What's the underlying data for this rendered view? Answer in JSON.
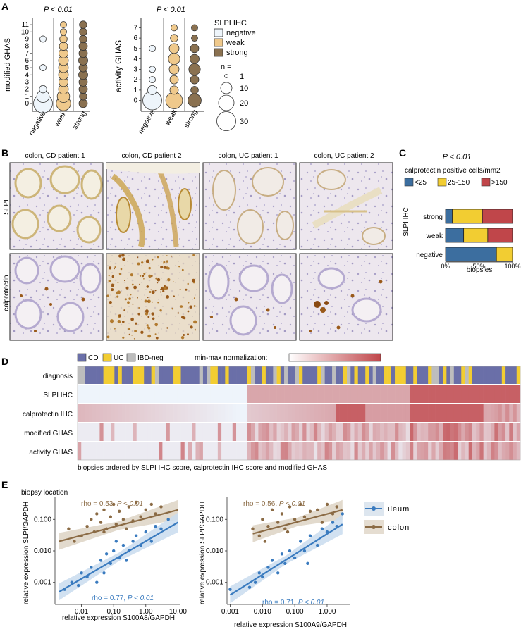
{
  "panels": {
    "A": "A",
    "B": "B",
    "C": "C",
    "D": "D",
    "E": "E"
  },
  "panelA": {
    "left": {
      "pvalue": "P < 0.01",
      "ylabel": "modified GHAS",
      "yticks": [
        "0",
        "1",
        "2",
        "3",
        "4",
        "5",
        "6",
        "7",
        "8",
        "9",
        "10",
        "11"
      ],
      "categories": [
        "negative",
        "weak",
        "strong"
      ]
    },
    "right": {
      "pvalue": "P < 0.01",
      "ylabel": "activity GHAS",
      "yticks": [
        "0",
        "1",
        "2",
        "3",
        "4",
        "5",
        "6",
        "7"
      ],
      "categories": [
        "negative",
        "weak",
        "strong"
      ]
    },
    "legend": {
      "title": "SLPI IHC",
      "items": [
        {
          "label": "negative",
          "color": "#eef5fb"
        },
        {
          "label": "weak",
          "color": "#efc98c"
        },
        {
          "label": "strong",
          "color": "#8a7150"
        }
      ],
      "size_title": "n =",
      "sizes": [
        "1",
        "10",
        "20",
        "30"
      ]
    }
  },
  "panelB": {
    "columns": [
      "colon, CD patient 1",
      "colon, CD patient 2",
      "colon, UC patient 1",
      "colon, UC patient 2"
    ],
    "rows": [
      "SLPI",
      "calprotectin"
    ]
  },
  "panelC": {
    "pvalue": "P < 0.01",
    "legend_title": "calprotectin positive cells/mm2",
    "legend": [
      {
        "label": "<25",
        "color": "#3c6e9f"
      },
      {
        "label": "25-150",
        "color": "#f2cd32"
      },
      {
        "label": ">150",
        "color": "#c0464a"
      }
    ],
    "ylabel": "SLPI IHC",
    "xlabel": "biopsies",
    "xticks": [
      "0%",
      "50%",
      "100%"
    ]
  },
  "panelD": {
    "legend": [
      {
        "label": "CD",
        "color": "#6a6fa8"
      },
      {
        "label": "UC",
        "color": "#f2cd32"
      },
      {
        "label": "IBD-neg",
        "color": "#bdbdbd"
      }
    ],
    "norm_label": "min-max normalization:",
    "rows": [
      "diagnosis",
      "SLPI IHC",
      "calprotectin IHC",
      "modified GHAS",
      "activity GHAS"
    ],
    "caption": "biopsies ordered by SLPI IHC score, calprotectin IHC score and modified GHAS"
  },
  "panelE": {
    "title": "biopsy location",
    "legend": [
      {
        "label": "ileum",
        "color": "#3a7bbf"
      },
      {
        "label": "colon",
        "color": "#8b6b45"
      }
    ],
    "left": {
      "rho_colon": "rho = 0.53, ",
      "rho_ileum": "rho = 0.77, ",
      "p_text": "P < 0.01",
      "ylabel": "relative expression SLPI/GAPDH",
      "xlabel": "relative expression S100A8/GAPDH",
      "yticks": [
        "0.001",
        "0.010",
        "0.100"
      ],
      "xticks": [
        "0.01",
        "0.10",
        "1.00",
        "10.00"
      ]
    },
    "right": {
      "rho_colon": "rho = 0.56, ",
      "rho_ileum": "rho = 0.71, ",
      "p_text": "P < 0.01",
      "ylabel": "relative expression SLPI/GAPDH",
      "xlabel": "relative expression S100A9/GAPDH",
      "yticks": [
        "0.001",
        "0.010",
        "0.100"
      ],
      "xticks": [
        "0.001",
        "0.010",
        "0.100",
        "1.000"
      ]
    }
  },
  "chart_data": [
    {
      "type": "scatter",
      "title": "",
      "xlabel": "",
      "ylabel": "modified GHAS",
      "categories": [
        "negative",
        "weak",
        "strong"
      ],
      "series": [
        {
          "name": "negative",
          "points": [
            {
              "y": 0,
              "n": 30
            },
            {
              "y": 1,
              "n": 10
            },
            {
              "y": 2,
              "n": 2
            },
            {
              "y": 5,
              "n": 1
            },
            {
              "y": 9,
              "n": 1
            }
          ]
        },
        {
          "name": "weak",
          "points": [
            {
              "y": 0,
              "n": 15
            },
            {
              "y": 1,
              "n": 10
            },
            {
              "y": 2,
              "n": 5
            },
            {
              "y": 3,
              "n": 4
            },
            {
              "y": 4,
              "n": 5
            },
            {
              "y": 5,
              "n": 5
            },
            {
              "y": 6,
              "n": 5
            },
            {
              "y": 7,
              "n": 4
            },
            {
              "y": 8,
              "n": 3
            },
            {
              "y": 9,
              "n": 2
            },
            {
              "y": 10,
              "n": 1
            },
            {
              "y": 11,
              "n": 1
            }
          ]
        },
        {
          "name": "strong",
          "points": [
            {
              "y": 0,
              "n": 3
            },
            {
              "y": 1,
              "n": 2
            },
            {
              "y": 2,
              "n": 3
            },
            {
              "y": 3,
              "n": 3
            },
            {
              "y": 4,
              "n": 4
            },
            {
              "y": 5,
              "n": 3
            },
            {
              "y": 6,
              "n": 4
            },
            {
              "y": 7,
              "n": 3
            },
            {
              "y": 8,
              "n": 3
            },
            {
              "y": 9,
              "n": 2
            },
            {
              "y": 10,
              "n": 2
            },
            {
              "y": 11,
              "n": 2
            }
          ]
        }
      ],
      "ylim": [
        -0.5,
        11.5
      ]
    },
    {
      "type": "scatter",
      "title": "",
      "ylabel": "activity GHAS",
      "categories": [
        "negative",
        "weak",
        "strong"
      ],
      "series": [
        {
          "name": "negative",
          "points": [
            {
              "y": 0,
              "n": 30
            },
            {
              "y": 1,
              "n": 4
            },
            {
              "y": 2,
              "n": 1
            },
            {
              "y": 3,
              "n": 1
            },
            {
              "y": 5,
              "n": 1
            }
          ]
        },
        {
          "name": "weak",
          "points": [
            {
              "y": 0,
              "n": 22
            },
            {
              "y": 1,
              "n": 3
            },
            {
              "y": 2,
              "n": 3
            },
            {
              "y": 3,
              "n": 5
            },
            {
              "y": 4,
              "n": 8
            },
            {
              "y": 5,
              "n": 5
            },
            {
              "y": 6,
              "n": 2
            },
            {
              "y": 7,
              "n": 1
            }
          ]
        },
        {
          "name": "strong",
          "points": [
            {
              "y": 0,
              "n": 12
            },
            {
              "y": 1,
              "n": 2
            },
            {
              "y": 2,
              "n": 3
            },
            {
              "y": 3,
              "n": 8
            },
            {
              "y": 4,
              "n": 4
            },
            {
              "y": 5,
              "n": 3
            },
            {
              "y": 6,
              "n": 1
            },
            {
              "y": 7,
              "n": 1
            }
          ]
        }
      ],
      "ylim": [
        -0.5,
        7.5
      ]
    },
    {
      "type": "bar",
      "title": "",
      "categories": [
        "strong",
        "weak",
        "negative"
      ],
      "series": [
        {
          "name": "<25",
          "values": [
            10,
            27,
            76
          ]
        },
        {
          "name": "25-150",
          "values": [
            45,
            36,
            24
          ]
        },
        {
          "name": ">150",
          "values": [
            45,
            37,
            0
          ]
        }
      ],
      "xlabel": "biopsies",
      "ylabel": "SLPI IHC",
      "xlim": [
        0,
        100
      ]
    },
    {
      "type": "heatmap",
      "title": "",
      "rows": [
        "diagnosis",
        "SLPI IHC",
        "calprotectin IHC",
        "modified GHAS",
        "activity GHAS"
      ]
    },
    {
      "type": "scatter",
      "title": "",
      "xlabel": "relative expression S100A8/GAPDH",
      "ylabel": "relative expression SLPI/GAPDH",
      "xscale": "log",
      "yscale": "log",
      "xlim": [
        0.0015,
        12
      ],
      "ylim": [
        0.0002,
        0.5
      ],
      "series": [
        {
          "name": "colon",
          "points": [
            [
              0.01,
              0.03
            ],
            [
              0.015,
              0.06
            ],
            [
              0.02,
              0.1
            ],
            [
              0.025,
              0.04
            ],
            [
              0.03,
              0.15
            ],
            [
              0.04,
              0.08
            ],
            [
              0.05,
              0.2
            ],
            [
              0.06,
              0.05
            ],
            [
              0.08,
              0.12
            ],
            [
              0.1,
              0.3
            ],
            [
              0.12,
              0.07
            ],
            [
              0.15,
              0.18
            ],
            [
              0.2,
              0.1
            ],
            [
              0.3,
              0.25
            ],
            [
              0.4,
              0.09
            ],
            [
              0.5,
              0.35
            ],
            [
              0.7,
              0.12
            ],
            [
              1,
              0.2
            ],
            [
              1.5,
              0.3
            ],
            [
              2,
              0.15
            ],
            [
              3,
              0.25
            ],
            [
              0.006,
              0.02
            ],
            [
              0.004,
              0.05
            ],
            [
              0.05,
              0.04
            ],
            [
              0.25,
              0.05
            ]
          ],
          "fit": [
            [
              0.002,
              0.02
            ],
            [
              10,
              0.2
            ]
          ]
        },
        {
          "name": "ileum",
          "points": [
            [
              0.003,
              0.0006
            ],
            [
              0.005,
              0.001
            ],
            [
              0.008,
              0.0008
            ],
            [
              0.01,
              0.002
            ],
            [
              0.015,
              0.0015
            ],
            [
              0.02,
              0.003
            ],
            [
              0.03,
              0.001
            ],
            [
              0.04,
              0.005
            ],
            [
              0.05,
              0.002
            ],
            [
              0.06,
              0.008
            ],
            [
              0.08,
              0.004
            ],
            [
              0.1,
              0.01
            ],
            [
              0.15,
              0.006
            ],
            [
              0.2,
              0.015
            ],
            [
              0.3,
              0.01
            ],
            [
              0.4,
              0.02
            ],
            [
              0.5,
              0.03
            ],
            [
              0.7,
              0.015
            ],
            [
              1,
              0.04
            ],
            [
              1.5,
              0.02
            ],
            [
              2,
              0.06
            ],
            [
              3,
              0.05
            ],
            [
              5,
              0.1
            ],
            [
              0.12,
              0.02
            ],
            [
              0.25,
              0.005
            ]
          ],
          "fit": [
            [
              0.002,
              0.0005
            ],
            [
              10,
              0.08
            ]
          ]
        }
      ]
    },
    {
      "type": "scatter",
      "title": "",
      "xlabel": "relative expression S100A9/GAPDH",
      "ylabel": "relative expression SLPI/GAPDH",
      "xscale": "log",
      "yscale": "log",
      "xlim": [
        0.0008,
        5
      ],
      "ylim": [
        0.0002,
        0.5
      ],
      "series": [
        {
          "name": "colon",
          "points": [
            [
              0.005,
              0.05
            ],
            [
              0.008,
              0.03
            ],
            [
              0.01,
              0.1
            ],
            [
              0.015,
              0.06
            ],
            [
              0.02,
              0.2
            ],
            [
              0.03,
              0.08
            ],
            [
              0.04,
              0.15
            ],
            [
              0.05,
              0.05
            ],
            [
              0.07,
              0.25
            ],
            [
              0.1,
              0.1
            ],
            [
              0.15,
              0.3
            ],
            [
              0.2,
              0.12
            ],
            [
              0.3,
              0.18
            ],
            [
              0.5,
              0.2
            ],
            [
              0.7,
              0.08
            ],
            [
              1,
              0.3
            ],
            [
              1.5,
              0.15
            ],
            [
              2,
              0.25
            ],
            [
              0.012,
              0.02
            ],
            [
              0.06,
              0.04
            ]
          ],
          "fit": [
            [
              0.005,
              0.035
            ],
            [
              3,
              0.2
            ]
          ]
        },
        {
          "name": "ileum",
          "points": [
            [
              0.001,
              0.0006
            ],
            [
              0.004,
              0.0007
            ],
            [
              0.006,
              0.001
            ],
            [
              0.008,
              0.002
            ],
            [
              0.01,
              0.0015
            ],
            [
              0.015,
              0.003
            ],
            [
              0.02,
              0.005
            ],
            [
              0.03,
              0.002
            ],
            [
              0.04,
              0.008
            ],
            [
              0.05,
              0.004
            ],
            [
              0.07,
              0.01
            ],
            [
              0.1,
              0.006
            ],
            [
              0.15,
              0.02
            ],
            [
              0.2,
              0.01
            ],
            [
              0.3,
              0.03
            ],
            [
              0.5,
              0.015
            ],
            [
              0.7,
              0.05
            ],
            [
              1,
              0.04
            ],
            [
              1.5,
              0.08
            ],
            [
              2,
              0.06
            ],
            [
              3,
              0.15
            ],
            [
              0.25,
              0.004
            ]
          ],
          "fit": [
            [
              0.001,
              0.0004
            ],
            [
              3,
              0.07
            ]
          ]
        }
      ]
    }
  ]
}
